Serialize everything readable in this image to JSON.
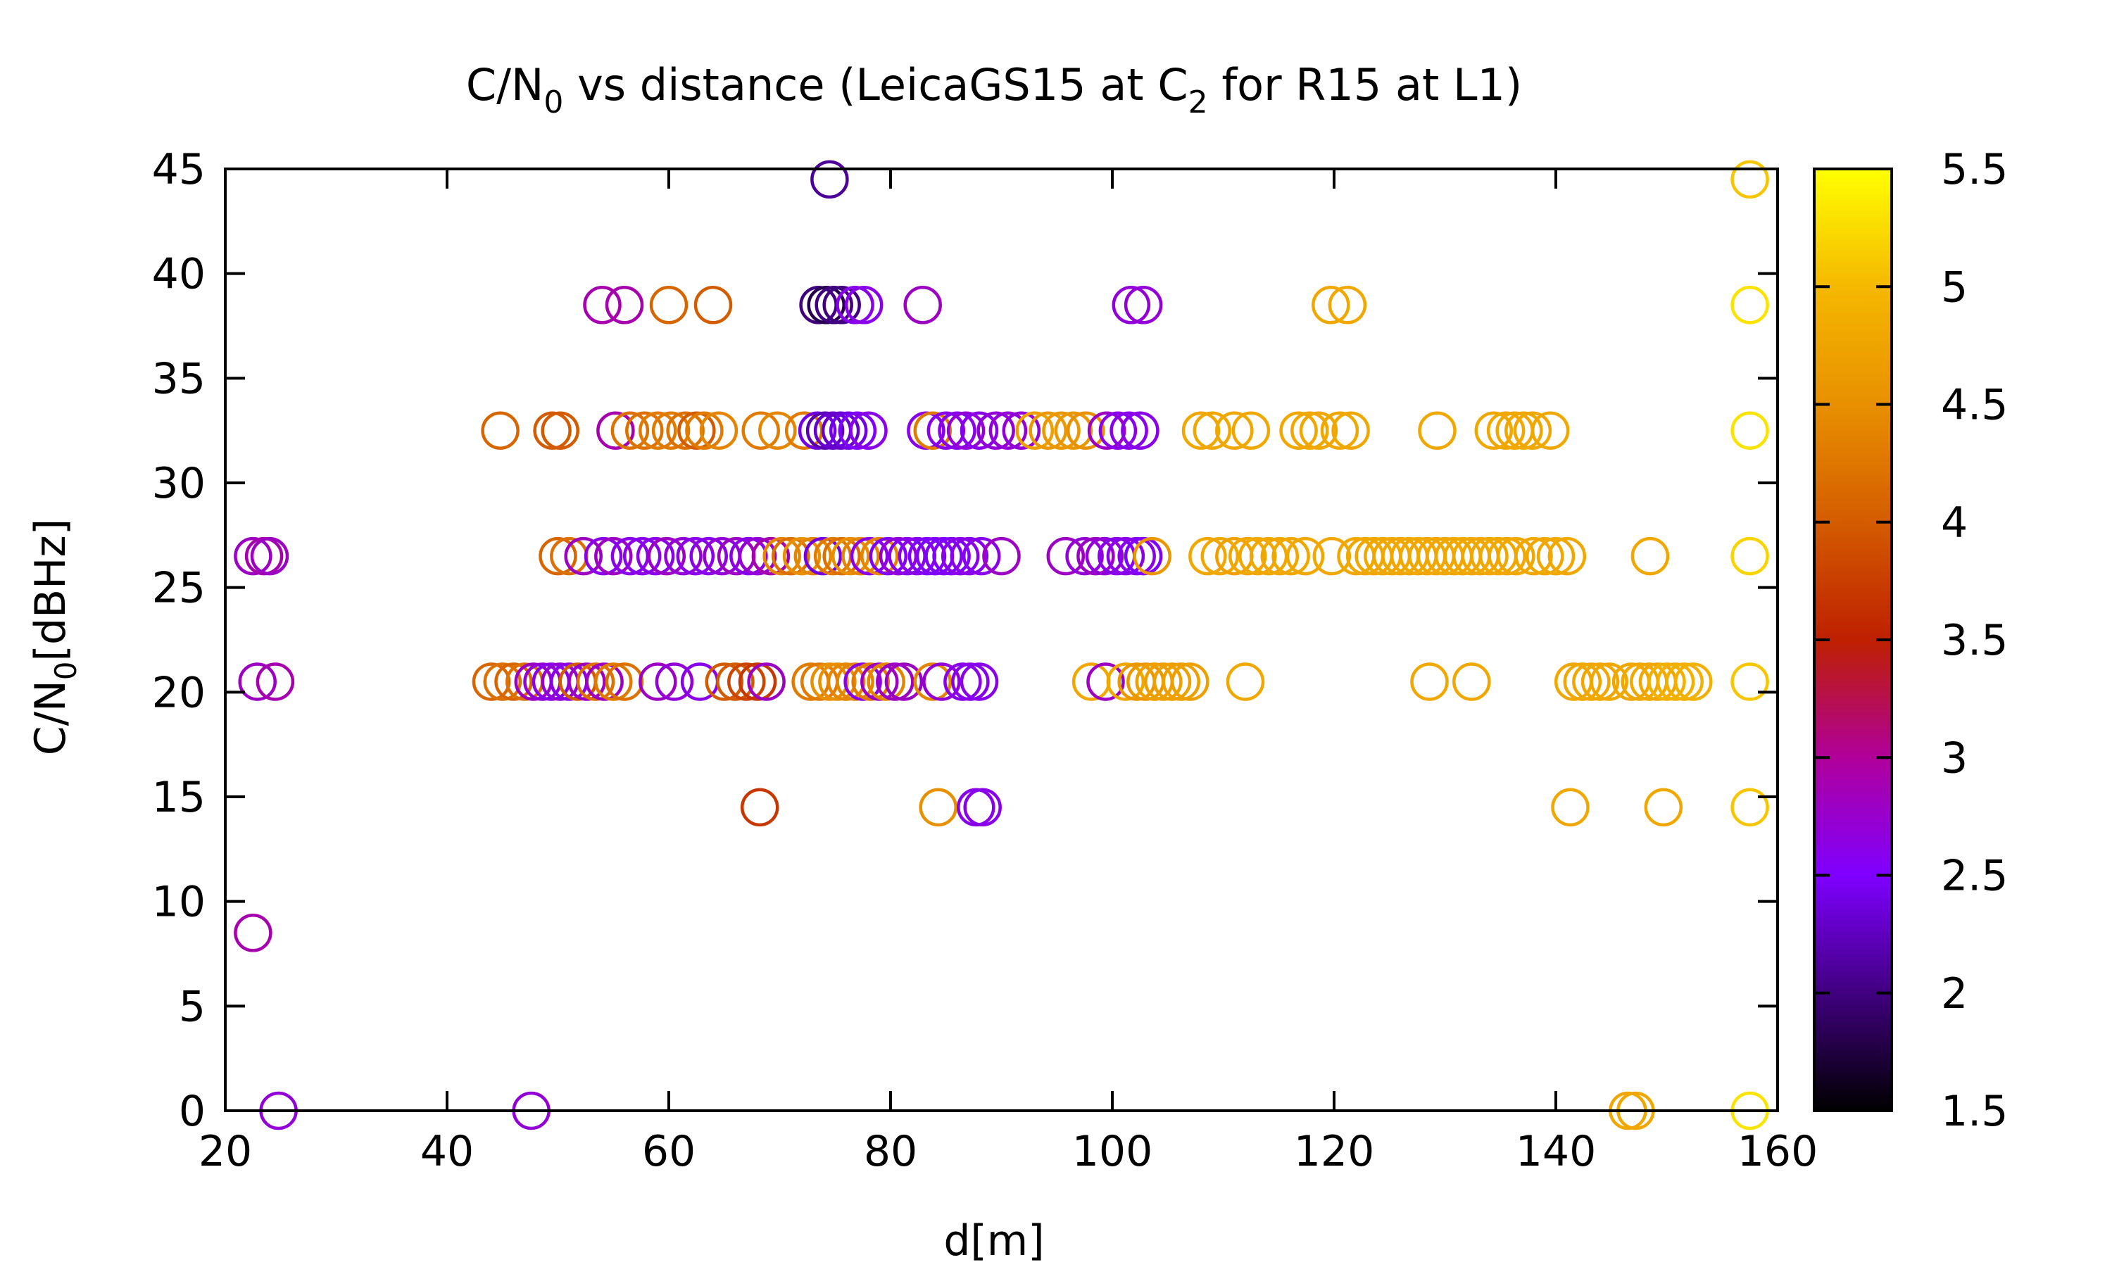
{
  "chart_data": {
    "type": "scatter",
    "title": "C/N₀ vs distance (LeicaGS15 at C₂ for R15 at L1)",
    "title_parts": {
      "pre": "C/N",
      "sub0": "0",
      "mid": " vs distance (LeicaGS15 at C",
      "sub1": "2",
      "post": " for R15 at L1)"
    },
    "xlabel": "d[m]",
    "ylabel": "C/N₀[dBHz]",
    "ylabel_parts": {
      "pre": "C/N",
      "sub": "0",
      "post": "[dBHz]"
    },
    "xlim": [
      20,
      160
    ],
    "ylim": [
      0,
      45
    ],
    "xticks": [
      "20",
      "40",
      "60",
      "80",
      "100",
      "120",
      "140",
      "160"
    ],
    "yticks": [
      "0",
      "5",
      "10",
      "15",
      "20",
      "25",
      "30",
      "35",
      "40",
      "45"
    ],
    "grid": false,
    "colorbar": {
      "range": [
        1.5,
        5.5
      ],
      "ticks": [
        "1.5",
        "2",
        "2.5",
        "3",
        "3.5",
        "4",
        "4.5",
        "5",
        "5.5"
      ],
      "palette": [
        "#000000",
        "#40007f",
        "#7f00ff",
        "#b0009a",
        "#be2000",
        "#d45c00",
        "#e89000",
        "#f5b800",
        "#ffff00"
      ]
    },
    "points": [
      [
        22.5,
        8.5,
        2.9
      ],
      [
        24.8,
        0,
        2.7
      ],
      [
        47.6,
        0,
        2.7
      ],
      [
        74.5,
        44.5,
        2.1
      ],
      [
        146.5,
        0,
        4.8
      ],
      [
        147.2,
        0,
        4.8
      ],
      [
        157.5,
        0,
        5.3
      ],
      [
        157.5,
        14.5,
        5.1
      ],
      [
        157.5,
        20.5,
        5.1
      ],
      [
        157.5,
        26.5,
        5.2
      ],
      [
        157.5,
        32.5,
        5.3
      ],
      [
        157.5,
        38.5,
        5.3
      ],
      [
        157.5,
        44.5,
        5.1
      ],
      [
        68.2,
        14.5,
        3.7
      ],
      [
        84.3,
        14.5,
        4.5
      ],
      [
        87.7,
        14.5,
        2.6
      ],
      [
        88.3,
        14.5,
        2.6
      ],
      [
        141.3,
        14.5,
        4.8
      ],
      [
        149.7,
        14.5,
        4.8
      ],
      [
        54.0,
        38.5,
        2.9
      ],
      [
        56.0,
        38.5,
        2.9
      ],
      [
        60.0,
        38.5,
        4.1
      ],
      [
        64.0,
        38.5,
        4.0
      ],
      [
        73.5,
        38.5,
        2.0
      ],
      [
        74.2,
        38.5,
        1.8
      ],
      [
        74.9,
        38.5,
        2.0
      ],
      [
        75.6,
        38.5,
        2.0
      ],
      [
        76.8,
        38.5,
        2.6
      ],
      [
        77.6,
        38.5,
        2.6
      ],
      [
        82.9,
        38.5,
        2.8
      ],
      [
        101.7,
        38.5,
        2.7
      ],
      [
        102.8,
        38.5,
        2.7
      ],
      [
        119.7,
        38.5,
        4.8
      ],
      [
        121.2,
        38.5,
        4.8
      ],
      [
        22.5,
        26.5,
        2.8
      ],
      [
        23.5,
        26.5,
        2.9
      ],
      [
        24.0,
        26.5,
        2.8
      ],
      [
        22.9,
        20.5,
        2.8
      ],
      [
        24.5,
        20.5,
        2.9
      ],
      [
        44.8,
        32.5,
        4.1
      ],
      [
        49.5,
        32.5,
        4.0
      ],
      [
        50.2,
        32.5,
        4.0
      ],
      [
        55.2,
        32.5,
        2.9
      ],
      [
        56.5,
        32.5,
        4.2
      ],
      [
        57.8,
        32.5,
        4.2
      ],
      [
        59.0,
        32.5,
        4.3
      ],
      [
        60.2,
        32.5,
        4.3
      ],
      [
        61.5,
        32.5,
        4.2
      ],
      [
        62.5,
        32.5,
        4.0
      ],
      [
        63.2,
        32.5,
        4.3
      ],
      [
        64.5,
        32.5,
        4.4
      ],
      [
        68.3,
        32.5,
        4.3
      ],
      [
        69.8,
        32.5,
        4.4
      ],
      [
        72.2,
        32.5,
        4.3
      ],
      [
        73.4,
        32.5,
        2.4
      ],
      [
        74.1,
        32.5,
        2.2
      ],
      [
        74.8,
        32.5,
        2.3
      ],
      [
        75.5,
        32.5,
        2.3
      ],
      [
        76.2,
        32.5,
        2.4
      ],
      [
        77.0,
        32.5,
        2.5
      ],
      [
        78.0,
        32.5,
        2.6
      ],
      [
        83.2,
        32.5,
        2.6
      ],
      [
        83.8,
        32.5,
        4.3
      ],
      [
        85.0,
        32.5,
        2.6
      ],
      [
        86.0,
        32.5,
        2.6
      ],
      [
        86.8,
        32.5,
        2.7
      ],
      [
        88.0,
        32.5,
        2.6
      ],
      [
        89.5,
        32.5,
        2.7
      ],
      [
        90.6,
        32.5,
        2.7
      ],
      [
        91.8,
        32.5,
        2.7
      ],
      [
        93.0,
        32.5,
        4.7
      ],
      [
        94.2,
        32.5,
        4.6
      ],
      [
        95.4,
        32.5,
        4.6
      ],
      [
        96.5,
        32.5,
        4.6
      ],
      [
        97.6,
        32.5,
        4.5
      ],
      [
        99.5,
        32.5,
        2.8
      ],
      [
        100.5,
        32.5,
        2.6
      ],
      [
        101.5,
        32.5,
        2.6
      ],
      [
        102.5,
        32.5,
        2.6
      ],
      [
        108.0,
        32.5,
        4.8
      ],
      [
        109.0,
        32.5,
        4.8
      ],
      [
        111.0,
        32.5,
        4.8
      ],
      [
        112.5,
        32.5,
        4.8
      ],
      [
        116.8,
        32.5,
        4.8
      ],
      [
        117.8,
        32.5,
        4.8
      ],
      [
        118.6,
        32.5,
        4.8
      ],
      [
        120.5,
        32.5,
        4.8
      ],
      [
        121.5,
        32.5,
        4.8
      ],
      [
        129.3,
        32.5,
        4.8
      ],
      [
        134.4,
        32.5,
        4.8
      ],
      [
        135.5,
        32.5,
        4.8
      ],
      [
        136.3,
        32.5,
        4.8
      ],
      [
        137.1,
        32.5,
        4.8
      ],
      [
        137.9,
        32.5,
        4.8
      ],
      [
        139.5,
        32.5,
        4.8
      ],
      [
        50.0,
        26.5,
        4.1
      ],
      [
        51.0,
        26.5,
        4.2
      ],
      [
        52.3,
        26.5,
        2.8
      ],
      [
        54.1,
        26.5,
        2.6
      ],
      [
        55.0,
        26.5,
        2.8
      ],
      [
        56.5,
        26.5,
        2.6
      ],
      [
        57.6,
        26.5,
        2.6
      ],
      [
        58.8,
        26.5,
        2.6
      ],
      [
        59.8,
        26.5,
        2.8
      ],
      [
        61.3,
        26.5,
        2.7
      ],
      [
        62.4,
        26.5,
        2.6
      ],
      [
        63.6,
        26.5,
        2.6
      ],
      [
        64.8,
        26.5,
        2.7
      ],
      [
        66.1,
        26.5,
        2.8
      ],
      [
        67.2,
        26.5,
        2.6
      ],
      [
        68.0,
        26.5,
        2.7
      ],
      [
        69.2,
        26.5,
        2.9
      ],
      [
        70.2,
        26.5,
        4.4
      ],
      [
        71.0,
        26.5,
        4.2
      ],
      [
        72.0,
        26.5,
        4.5
      ],
      [
        73.0,
        26.5,
        4.4
      ],
      [
        73.9,
        26.5,
        2.4
      ],
      [
        74.8,
        26.5,
        4.3
      ],
      [
        75.6,
        26.5,
        4.2
      ],
      [
        76.4,
        26.5,
        4.5
      ],
      [
        77.3,
        26.5,
        4.4
      ],
      [
        78.1,
        26.5,
        2.6
      ],
      [
        79.0,
        26.5,
        4.4
      ],
      [
        79.8,
        26.5,
        2.5
      ],
      [
        80.7,
        26.5,
        2.7
      ],
      [
        81.5,
        26.5,
        2.6
      ],
      [
        82.4,
        26.5,
        2.6
      ],
      [
        83.3,
        26.5,
        2.5
      ],
      [
        84.0,
        26.5,
        2.5
      ],
      [
        84.8,
        26.5,
        2.5
      ],
      [
        85.5,
        26.5,
        2.5
      ],
      [
        86.3,
        26.5,
        2.6
      ],
      [
        87.1,
        26.5,
        2.6
      ],
      [
        88.2,
        26.5,
        2.6
      ],
      [
        90.0,
        26.5,
        2.8
      ],
      [
        95.8,
        26.5,
        2.8
      ],
      [
        97.5,
        26.5,
        2.7
      ],
      [
        98.5,
        26.5,
        2.8
      ],
      [
        99.3,
        26.5,
        2.7
      ],
      [
        100.4,
        26.5,
        2.6
      ],
      [
        101.2,
        26.5,
        2.6
      ],
      [
        102.2,
        26.5,
        2.6
      ],
      [
        102.8,
        26.5,
        2.5
      ],
      [
        103.6,
        26.5,
        4.6
      ],
      [
        108.6,
        26.5,
        4.8
      ],
      [
        109.7,
        26.5,
        4.8
      ],
      [
        111.0,
        26.5,
        4.7
      ],
      [
        112.2,
        26.5,
        4.8
      ],
      [
        113.1,
        26.5,
        4.8
      ],
      [
        114.1,
        26.5,
        4.8
      ],
      [
        115.1,
        26.5,
        4.8
      ],
      [
        116.1,
        26.5,
        4.8
      ],
      [
        117.4,
        26.5,
        4.8
      ],
      [
        119.8,
        26.5,
        4.8
      ],
      [
        122.0,
        26.5,
        4.8
      ],
      [
        122.8,
        26.5,
        4.8
      ],
      [
        123.6,
        26.5,
        4.8
      ],
      [
        124.4,
        26.5,
        4.8
      ],
      [
        125.2,
        26.5,
        4.8
      ],
      [
        126.0,
        26.5,
        4.8
      ],
      [
        126.8,
        26.5,
        4.8
      ],
      [
        127.6,
        26.5,
        4.8
      ],
      [
        128.4,
        26.5,
        4.8
      ],
      [
        129.2,
        26.5,
        4.8
      ],
      [
        130.0,
        26.5,
        4.8
      ],
      [
        130.8,
        26.5,
        4.8
      ],
      [
        131.6,
        26.5,
        4.8
      ],
      [
        132.4,
        26.5,
        4.8
      ],
      [
        133.2,
        26.5,
        4.8
      ],
      [
        134.0,
        26.5,
        4.8
      ],
      [
        134.8,
        26.5,
        4.8
      ],
      [
        135.6,
        26.5,
        4.8
      ],
      [
        136.4,
        26.5,
        4.8
      ],
      [
        138.0,
        26.5,
        4.8
      ],
      [
        139.0,
        26.5,
        4.8
      ],
      [
        140.0,
        26.5,
        4.8
      ],
      [
        141.0,
        26.5,
        4.8
      ],
      [
        148.5,
        26.5,
        4.8
      ],
      [
        44.0,
        20.5,
        4.1
      ],
      [
        45.0,
        20.5,
        4.2
      ],
      [
        46.0,
        20.5,
        4.1
      ],
      [
        47.0,
        20.5,
        4.2
      ],
      [
        47.8,
        20.5,
        2.8
      ],
      [
        48.6,
        20.5,
        2.7
      ],
      [
        49.4,
        20.5,
        2.6
      ],
      [
        50.2,
        20.5,
        2.7
      ],
      [
        51.0,
        20.5,
        2.6
      ],
      [
        51.8,
        20.5,
        4.0
      ],
      [
        52.6,
        20.5,
        2.8
      ],
      [
        53.4,
        20.5,
        4.2
      ],
      [
        54.2,
        20.5,
        2.8
      ],
      [
        55.0,
        20.5,
        4.3
      ],
      [
        56.0,
        20.5,
        4.2
      ],
      [
        59.0,
        20.5,
        2.8
      ],
      [
        60.5,
        20.5,
        2.7
      ],
      [
        62.8,
        20.5,
        2.6
      ],
      [
        65.0,
        20.5,
        4.0
      ],
      [
        66.0,
        20.5,
        4.0
      ],
      [
        67.0,
        20.5,
        3.8
      ],
      [
        68.0,
        20.5,
        3.7
      ],
      [
        68.8,
        20.5,
        2.8
      ],
      [
        72.8,
        20.5,
        4.3
      ],
      [
        73.6,
        20.5,
        4.3
      ],
      [
        74.5,
        20.5,
        4.5
      ],
      [
        75.2,
        20.5,
        4.5
      ],
      [
        76.0,
        20.5,
        4.4
      ],
      [
        76.8,
        20.5,
        4.4
      ],
      [
        77.5,
        20.5,
        2.6
      ],
      [
        78.2,
        20.5,
        4.3
      ],
      [
        79.0,
        20.5,
        2.8
      ],
      [
        79.6,
        20.5,
        4.4
      ],
      [
        80.4,
        20.5,
        2.8
      ],
      [
        81.2,
        20.5,
        2.8
      ],
      [
        83.8,
        20.5,
        4.4
      ],
      [
        84.6,
        20.5,
        2.7
      ],
      [
        86.5,
        20.5,
        2.6
      ],
      [
        87.2,
        20.5,
        2.6
      ],
      [
        88.0,
        20.5,
        2.6
      ],
      [
        98.1,
        20.5,
        4.8
      ],
      [
        99.4,
        20.5,
        2.8
      ],
      [
        101.2,
        20.5,
        4.8
      ],
      [
        102.2,
        20.5,
        4.6
      ],
      [
        103.0,
        20.5,
        4.6
      ],
      [
        103.8,
        20.5,
        4.7
      ],
      [
        104.6,
        20.5,
        4.7
      ],
      [
        105.4,
        20.5,
        4.7
      ],
      [
        106.2,
        20.5,
        4.7
      ],
      [
        107.0,
        20.5,
        4.7
      ],
      [
        112.0,
        20.5,
        4.8
      ],
      [
        128.6,
        20.5,
        4.8
      ],
      [
        132.4,
        20.5,
        4.8
      ],
      [
        141.6,
        20.5,
        4.8
      ],
      [
        142.4,
        20.5,
        4.8
      ],
      [
        143.2,
        20.5,
        4.8
      ],
      [
        144.0,
        20.5,
        4.8
      ],
      [
        144.8,
        20.5,
        4.8
      ],
      [
        146.8,
        20.5,
        4.8
      ],
      [
        147.6,
        20.5,
        4.8
      ],
      [
        148.4,
        20.5,
        4.8
      ],
      [
        149.2,
        20.5,
        4.8
      ],
      [
        150.0,
        20.5,
        4.9
      ],
      [
        150.8,
        20.5,
        4.9
      ],
      [
        151.6,
        20.5,
        4.9
      ],
      [
        152.4,
        20.5,
        4.9
      ]
    ]
  }
}
